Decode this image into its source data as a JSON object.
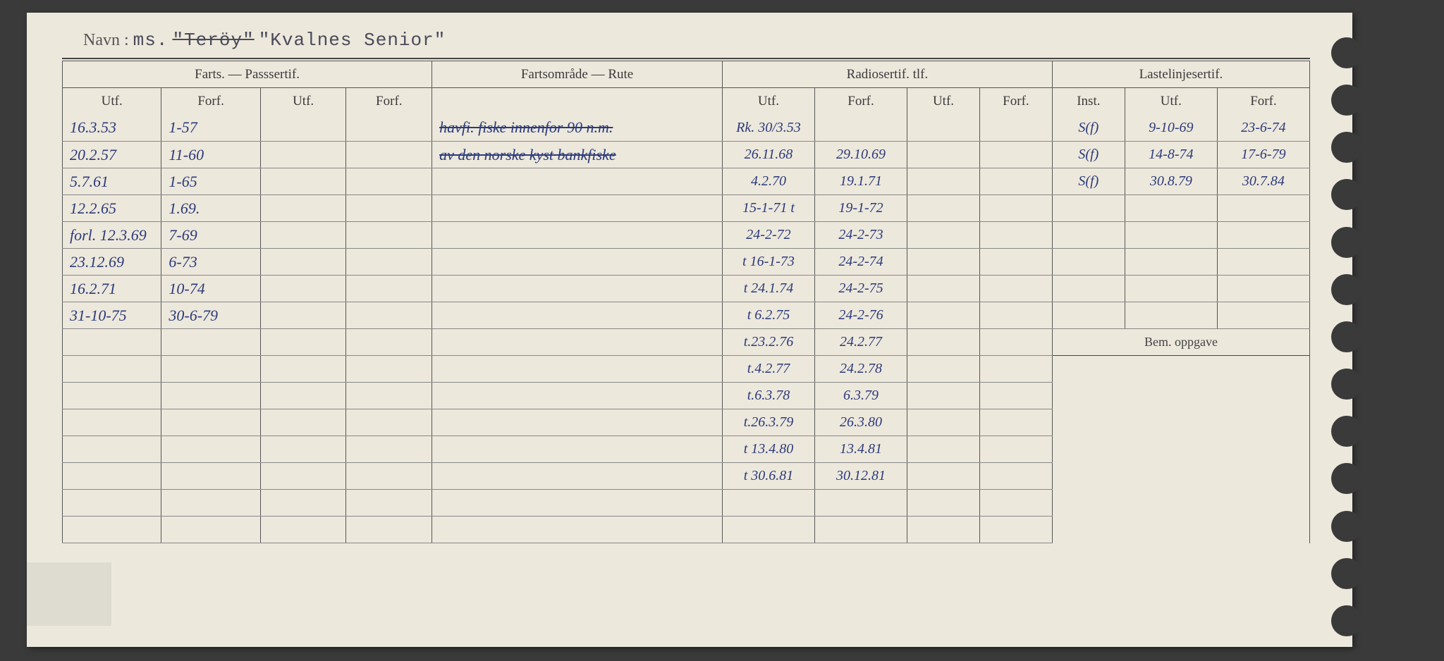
{
  "navn": {
    "label": "Navn :",
    "prefix": "ms.",
    "strikeName": "\"Teröy\"",
    "name": "\"Kvalnes Senior\""
  },
  "headers": {
    "group1": "Farts. — Passsertif.",
    "group2": "Fartsområde — Rute",
    "group3": "Radiosertif. tlf.",
    "group4": "Lastelinjesertif.",
    "utf": "Utf.",
    "forf": "Forf.",
    "inst": "Inst.",
    "bem": "Bem. oppgave"
  },
  "rows": [
    {
      "fu": "16.3.53",
      "ff": "1-57",
      "pu": "",
      "pf": "",
      "rute": "havfi. fiske innenfor 90 n.m.",
      "ru": "Rk. 30/3.53",
      "rf": "",
      "r2u": "",
      "r2f": "",
      "li": "S(f)",
      "lu": "9-10-69",
      "lf": "23-6-74",
      "ruteStrike": true
    },
    {
      "fu": "20.2.57",
      "ff": "11-60",
      "pu": "",
      "pf": "",
      "rute": "av den norske kyst bankfiske",
      "ru": "26.11.68",
      "rf": "29.10.69",
      "r2u": "",
      "r2f": "",
      "li": "S(f)",
      "lu": "14-8-74",
      "lf": "17-6-79",
      "ruteStrike": true
    },
    {
      "fu": "5.7.61",
      "ff": "1-65",
      "pu": "",
      "pf": "",
      "rute": "",
      "ru": "4.2.70",
      "rf": "19.1.71",
      "r2u": "",
      "r2f": "",
      "li": "S(f)",
      "lu": "30.8.79",
      "lf": "30.7.84"
    },
    {
      "fu": "12.2.65",
      "ff": "1.69.",
      "pu": "",
      "pf": "",
      "rute": "",
      "ru": "15-1-71 t",
      "rf": "19-1-72",
      "r2u": "",
      "r2f": "",
      "li": "",
      "lu": "",
      "lf": ""
    },
    {
      "fu": "forl. 12.3.69",
      "ff": "7-69",
      "pu": "",
      "pf": "",
      "rute": "",
      "ru": "24-2-72",
      "rf": "24-2-73",
      "r2u": "",
      "r2f": "",
      "li": "",
      "lu": "",
      "lf": ""
    },
    {
      "fu": "23.12.69",
      "ff": "6-73",
      "pu": "",
      "pf": "",
      "rute": "",
      "ru": "t 16-1-73",
      "rf": "24-2-74",
      "r2u": "",
      "r2f": "",
      "li": "",
      "lu": "",
      "lf": ""
    },
    {
      "fu": "16.2.71",
      "ff": "10-74",
      "pu": "",
      "pf": "",
      "rute": "",
      "ru": "t 24.1.74",
      "rf": "24-2-75",
      "r2u": "",
      "r2f": "",
      "li": "",
      "lu": "",
      "lf": ""
    },
    {
      "fu": "31-10-75",
      "ff": "30-6-79",
      "pu": "",
      "pf": "",
      "rute": "",
      "ru": "t 6.2.75",
      "rf": "24-2-76",
      "r2u": "",
      "r2f": "",
      "li": "",
      "lu": "",
      "lf": ""
    },
    {
      "fu": "",
      "ff": "",
      "pu": "",
      "pf": "",
      "rute": "",
      "ru": "t.23.2.76",
      "rf": "24.2.77",
      "r2u": "",
      "r2f": ""
    },
    {
      "fu": "",
      "ff": "",
      "pu": "",
      "pf": "",
      "rute": "",
      "ru": "t.4.2.77",
      "rf": "24.2.78",
      "r2u": "",
      "r2f": ""
    },
    {
      "fu": "",
      "ff": "",
      "pu": "",
      "pf": "",
      "rute": "",
      "ru": "t.6.3.78",
      "rf": "6.3.79",
      "r2u": "",
      "r2f": ""
    },
    {
      "fu": "",
      "ff": "",
      "pu": "",
      "pf": "",
      "rute": "",
      "ru": "t.26.3.79",
      "rf": "26.3.80",
      "r2u": "",
      "r2f": ""
    },
    {
      "fu": "",
      "ff": "",
      "pu": "",
      "pf": "",
      "rute": "",
      "ru": "t 13.4.80",
      "rf": "13.4.81",
      "r2u": "",
      "r2f": ""
    },
    {
      "fu": "",
      "ff": "",
      "pu": "",
      "pf": "",
      "rute": "",
      "ru": "t 30.6.81",
      "rf": "30.12.81",
      "r2u": "",
      "r2f": ""
    },
    {
      "fu": "",
      "ff": "",
      "pu": "",
      "pf": "",
      "rute": "",
      "ru": "",
      "rf": "",
      "r2u": "",
      "r2f": ""
    },
    {
      "fu": "",
      "ff": "",
      "pu": "",
      "pf": "",
      "rute": "",
      "ru": "",
      "rf": "",
      "r2u": "",
      "r2f": ""
    }
  ]
}
